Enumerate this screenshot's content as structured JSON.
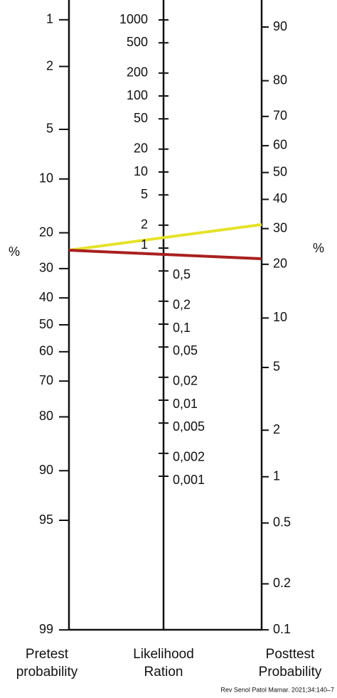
{
  "pretest": {
    "ticks": [
      1,
      2,
      5,
      10,
      20,
      30,
      40,
      50,
      60,
      70,
      80,
      90,
      95,
      99
    ],
    "unit": "%",
    "label": [
      "Pretest",
      "probability"
    ]
  },
  "likelihood_ratio": {
    "ticks": [
      1000,
      500,
      200,
      100,
      50,
      20,
      10,
      5,
      2,
      1,
      {
        "value": 0.5,
        "label": "0,5"
      },
      {
        "value": 0.2,
        "label": "0,2"
      },
      {
        "value": 0.1,
        "label": "0,1"
      },
      {
        "value": 0.05,
        "label": "0,05"
      },
      {
        "value": 0.02,
        "label": "0,02"
      },
      {
        "value": 0.01,
        "label": "0,01"
      },
      {
        "value": 0.005,
        "label": "0,005"
      },
      {
        "value": 0.002,
        "label": "0,002"
      },
      {
        "value": 0.001,
        "label": "0,001"
      }
    ],
    "label": [
      "Likelihood",
      "Ration"
    ]
  },
  "posttest": {
    "ticks": [
      90,
      80,
      70,
      60,
      50,
      40,
      30,
      20,
      10,
      5,
      2,
      1,
      0.5,
      0.2,
      0.1
    ],
    "unit": "%",
    "label": [
      "Posttest",
      "Probability"
    ]
  },
  "citation": "Rev Senol Patol Mamar. 2021;34:140–7"
}
